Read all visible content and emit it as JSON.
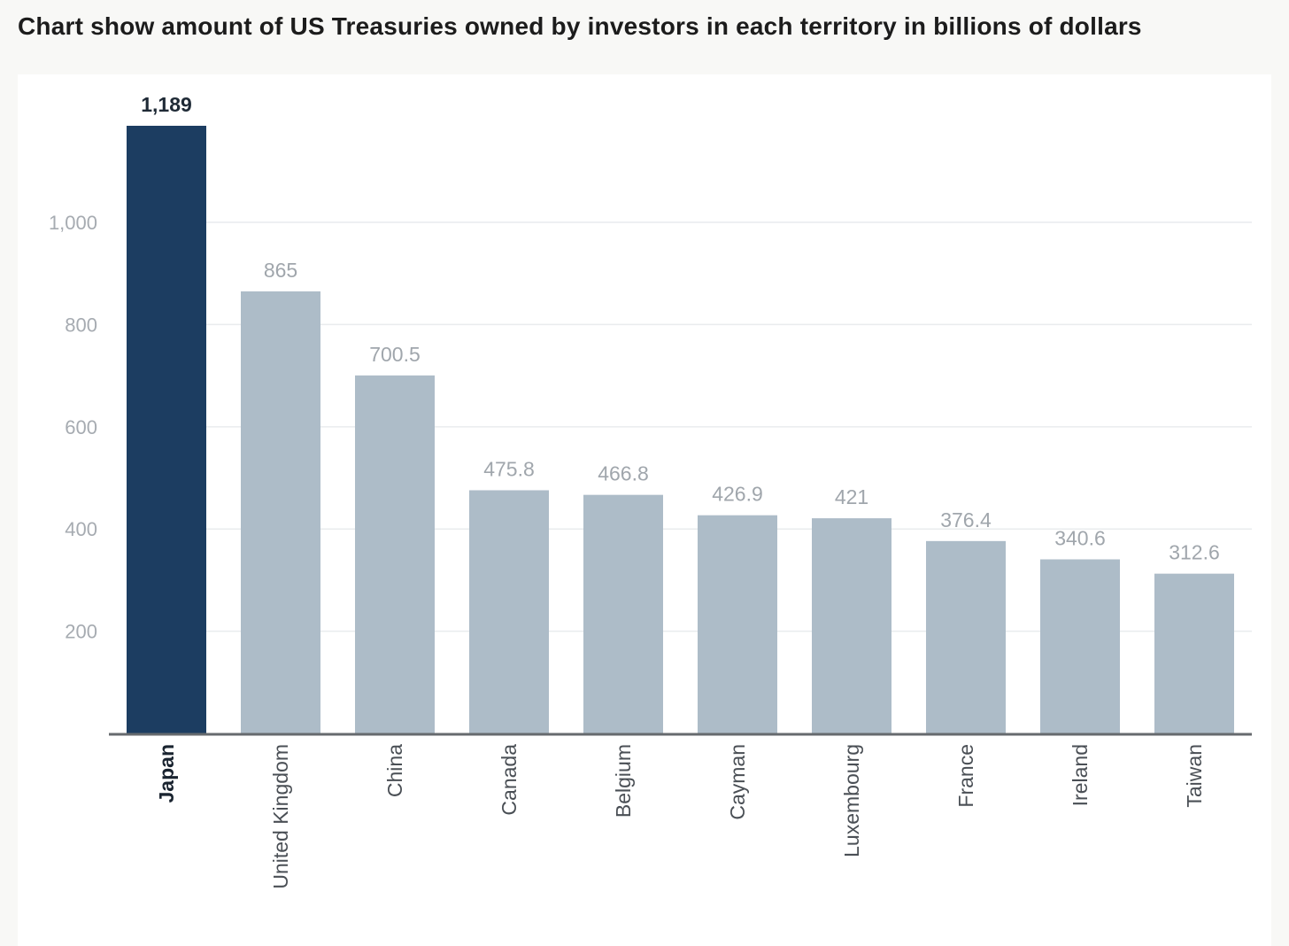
{
  "page": {
    "caption": "Chart show amount of US Treasuries owned by investors in each territory in billions of dollars"
  },
  "colors": {
    "highlight_bar": "#1c3d61",
    "bar": "#adbcc8",
    "gridline": "#e9ecee",
    "axis": "#666a6e"
  },
  "chart_data": {
    "type": "bar",
    "title": "Chart show amount of US Treasuries owned by investors in each territory in billions of dollars",
    "categories": [
      "Japan",
      "United Kingdom",
      "China",
      "Canada",
      "Belgium",
      "Cayman",
      "Luxembourg",
      "France",
      "Ireland",
      "Taiwan"
    ],
    "values": [
      1189,
      865,
      700.5,
      475.8,
      466.8,
      426.9,
      421,
      376.4,
      340.6,
      312.6
    ],
    "value_labels": [
      "1,189",
      "865",
      "700.5",
      "475.8",
      "466.8",
      "426.9",
      "421",
      "376.4",
      "340.6",
      "312.6"
    ],
    "highlight_category": "Japan",
    "y_ticks": [
      200,
      400,
      600,
      800,
      1000
    ],
    "y_tick_labels": [
      "200",
      "400",
      "600",
      "800",
      "1,000"
    ],
    "ylim": [
      0,
      1189
    ],
    "xlabel": "",
    "ylabel": "",
    "grid": true,
    "legend": "none",
    "x_label_orientation": "vertical"
  }
}
